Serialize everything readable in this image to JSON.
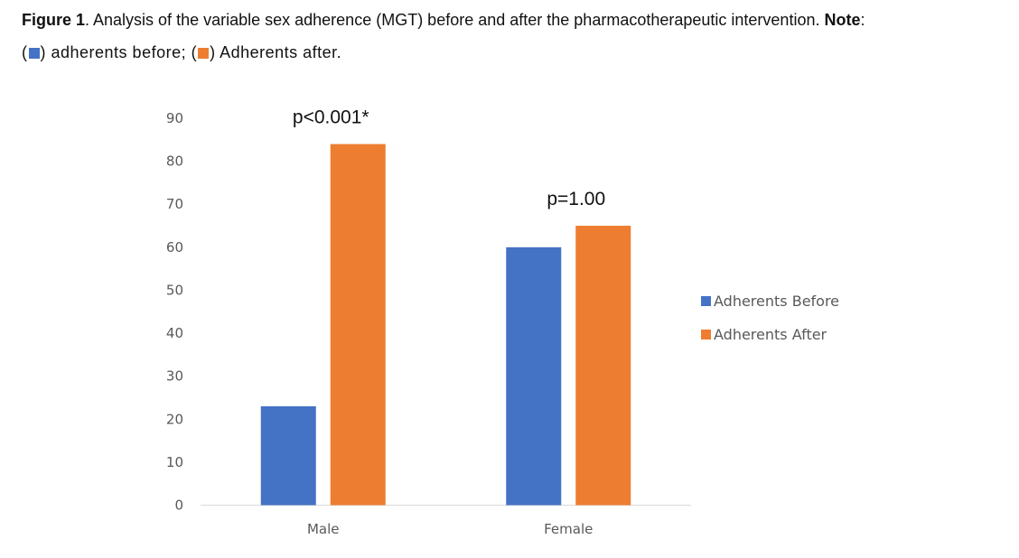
{
  "caption": {
    "figure_label": "Figure 1",
    "text": ". Analysis of the variable sex adherence (MGT) before and after the pharmacotherapeutic intervention. ",
    "note_label": "Note",
    "note_colon": ":",
    "open1": "(",
    "before_text": ") adherents before; (",
    "after_text": ") Adherents after."
  },
  "colors": {
    "before": "#4472C4",
    "after": "#ED7D31"
  },
  "chart_data": {
    "type": "bar",
    "categories": [
      "Male",
      "Female"
    ],
    "series": [
      {
        "name": "Adherents Before",
        "values": [
          23,
          60
        ]
      },
      {
        "name": "Adherents After",
        "values": [
          84,
          65
        ]
      }
    ],
    "ylim": [
      0,
      90
    ],
    "yticks": [
      "0",
      "10",
      "20",
      "30",
      "40",
      "50",
      "60",
      "70",
      "80",
      "90"
    ],
    "annotations": [
      "p<0.001*",
      "p=1.00"
    ],
    "legend_position": "right",
    "grid": false
  }
}
